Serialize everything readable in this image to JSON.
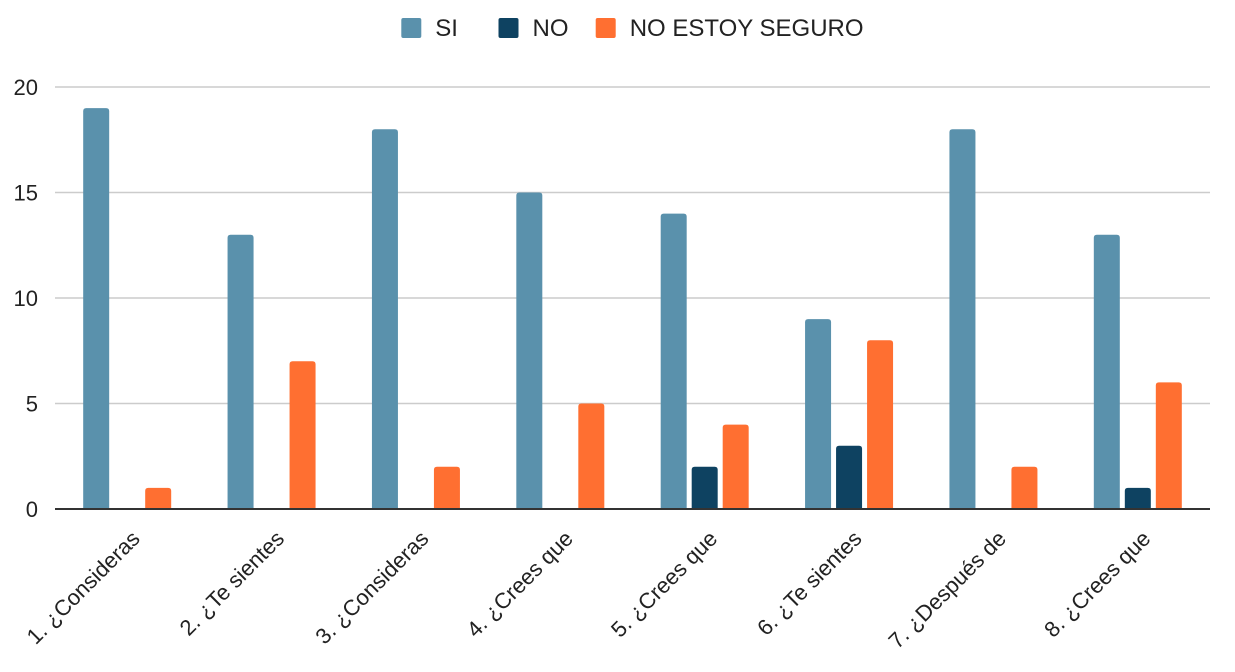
{
  "chart_data": {
    "type": "bar",
    "categories": [
      "1. ¿Consideras",
      "2. ¿Te sientes",
      "3. ¿Consideras",
      "4. ¿Crees que",
      "5. ¿Crees que",
      "6. ¿Te sientes",
      "7. ¿Después de",
      "8. ¿Crees que"
    ],
    "series": [
      {
        "name": "SI",
        "color": "#5a91ac",
        "values": [
          19,
          13,
          18,
          15,
          14,
          9,
          18,
          13
        ]
      },
      {
        "name": "NO",
        "color": "#0e4261",
        "values": [
          0,
          0,
          0,
          0,
          2,
          3,
          0,
          1
        ]
      },
      {
        "name": "NO ESTOY SEGURO",
        "color": "#ff6f31",
        "values": [
          1,
          7,
          2,
          5,
          4,
          8,
          2,
          6
        ]
      }
    ],
    "ylim": [
      0,
      20
    ],
    "yticks": [
      0,
      5,
      10,
      15,
      20
    ],
    "grid": true,
    "legend_position": "top-center"
  }
}
